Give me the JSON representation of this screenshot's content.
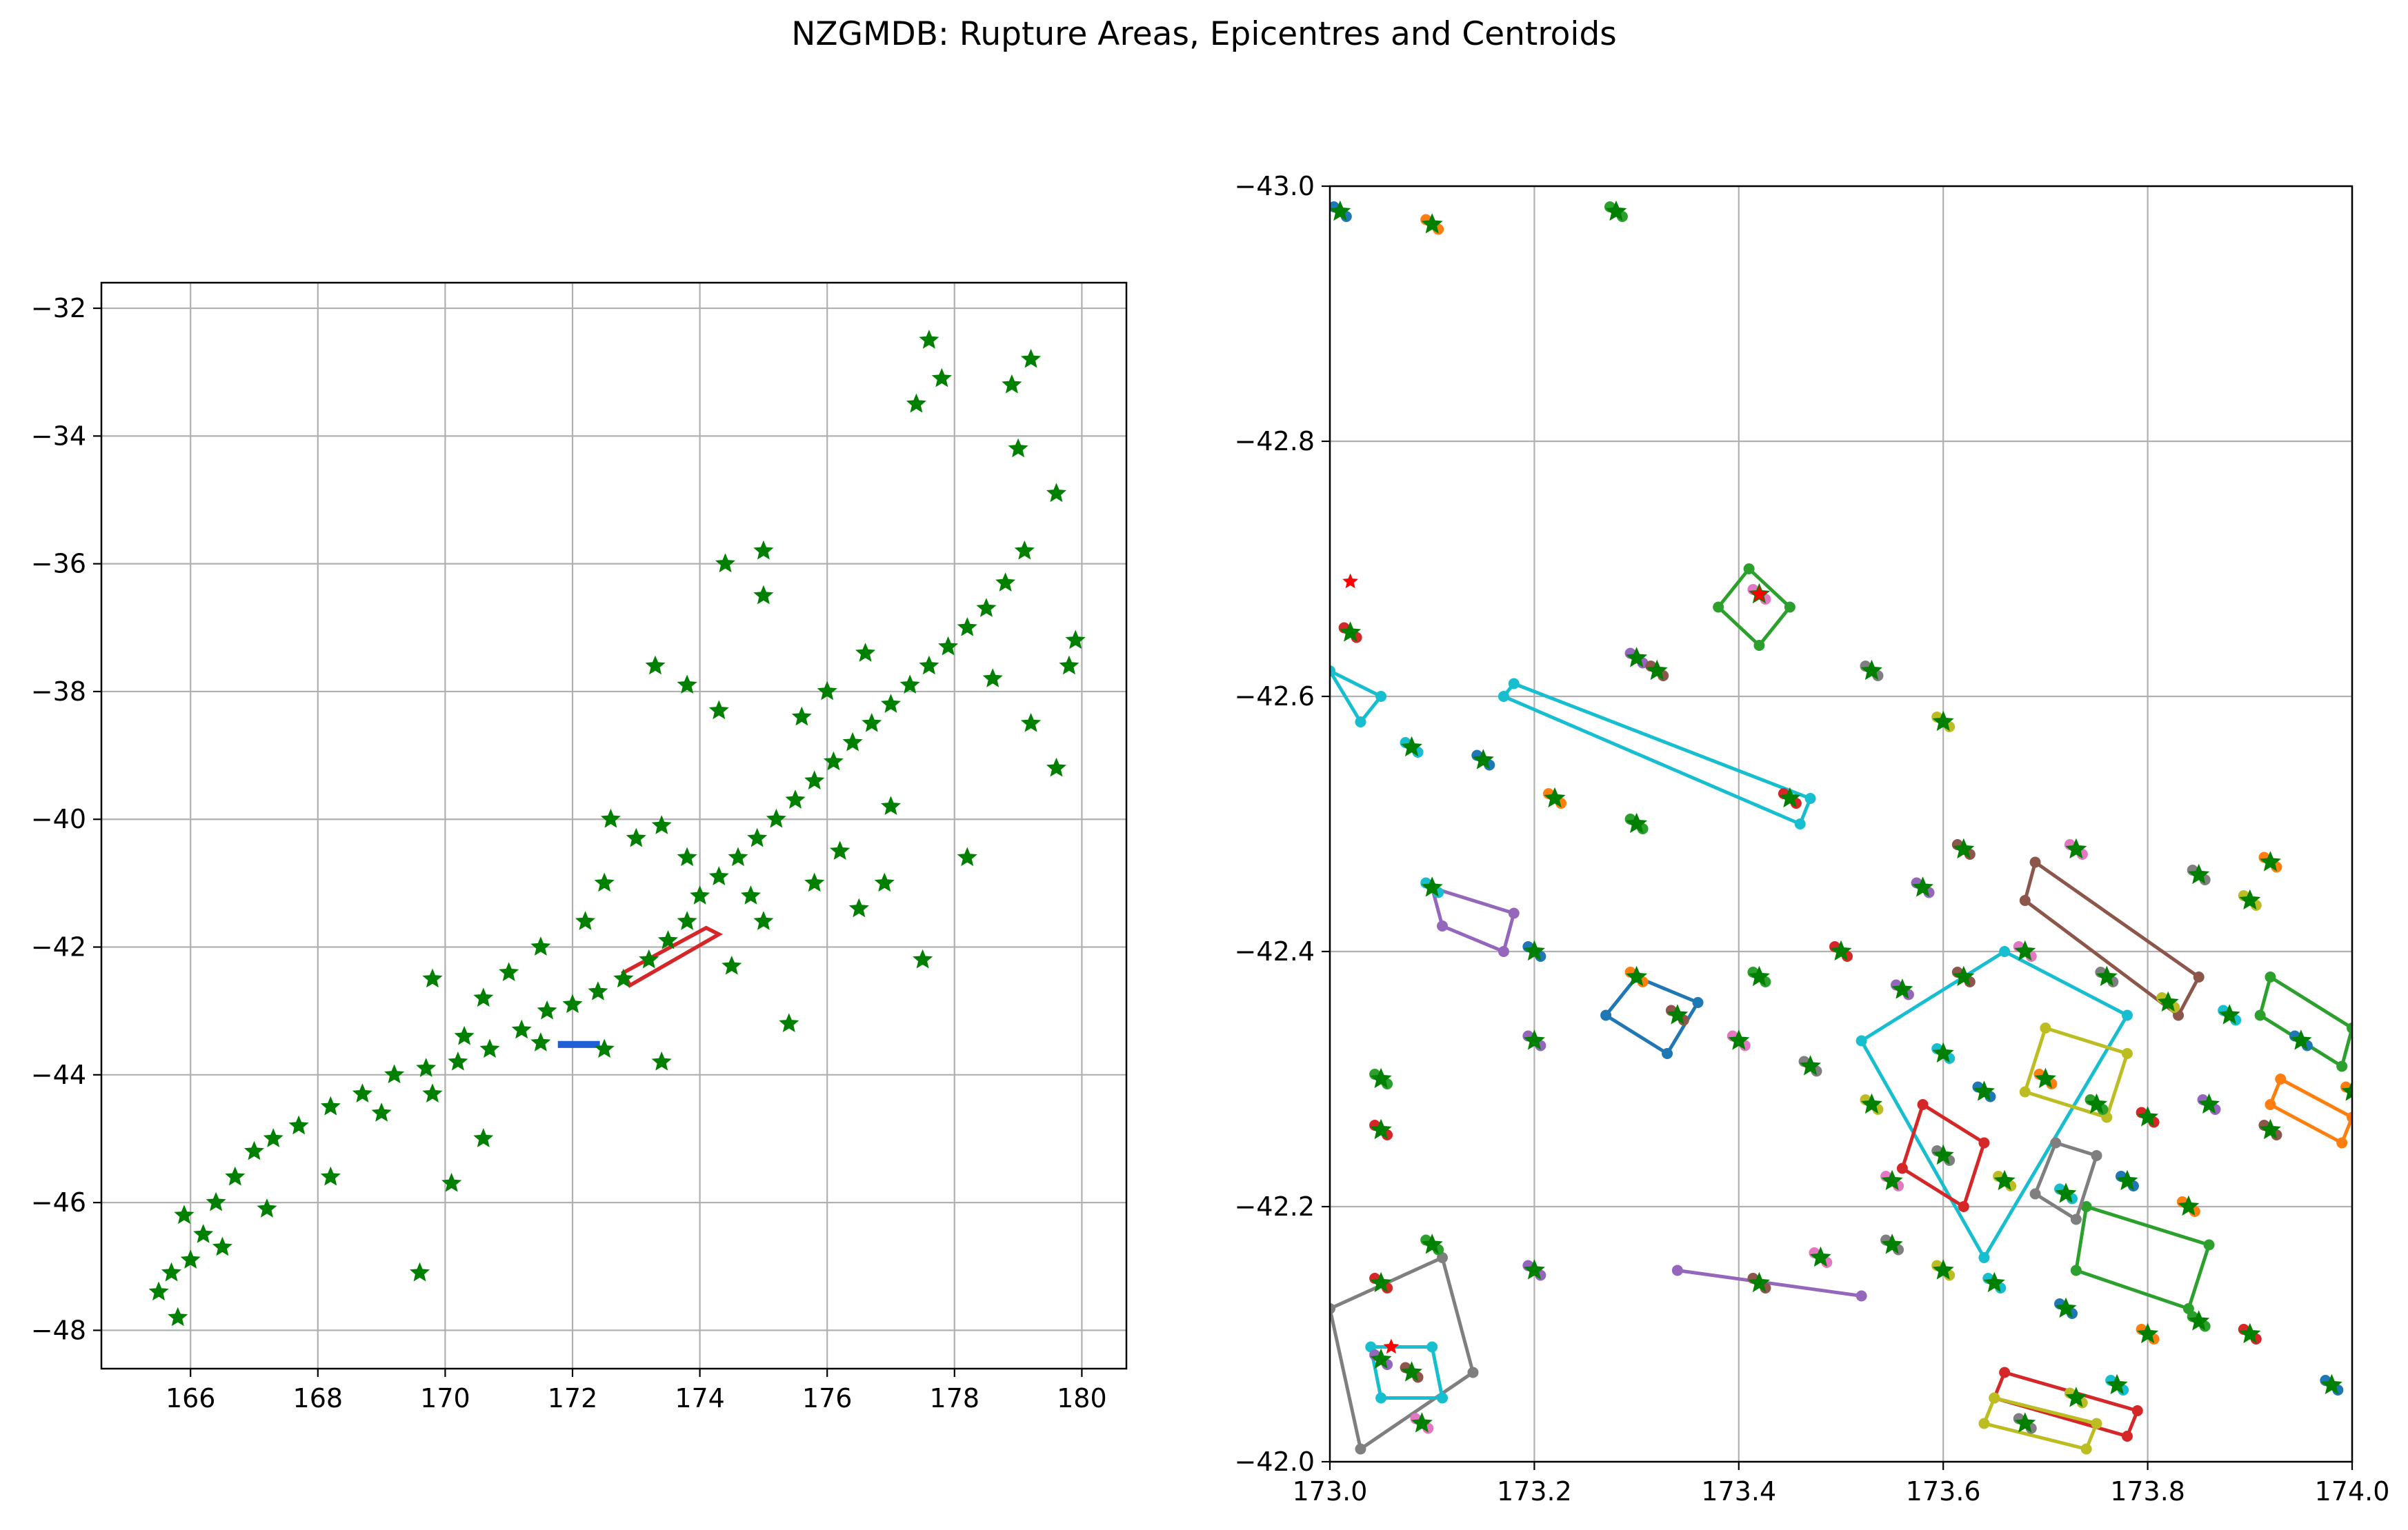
{
  "suptitle": "NZGMDB: Rupture Areas, Epicentres and Centroids",
  "colors": {
    "star": "#008000",
    "epicentre": "#ff0000",
    "grid": "#b0b0b0",
    "palette": [
      "#1f77b4",
      "#ff7f0e",
      "#2ca02c",
      "#d62728",
      "#9467bd",
      "#8c564b",
      "#e377c2",
      "#7f7f7f",
      "#bcbd22",
      "#17becf"
    ]
  },
  "chart_data": [
    {
      "type": "scatter",
      "title": "",
      "xlabel": "",
      "ylabel": "",
      "xlim": [
        164.6,
        180.7
      ],
      "ylim": [
        -48.6,
        -31.6
      ],
      "grid": true,
      "xticks": [
        166,
        168,
        170,
        172,
        174,
        176,
        178,
        180
      ],
      "yticks": [
        -48,
        -46,
        -44,
        -42,
        -40,
        -38,
        -36,
        -34,
        -32
      ],
      "xtick_labels": [
        "166",
        "168",
        "170",
        "172",
        "174",
        "176",
        "178",
        "180"
      ],
      "ytick_labels": [
        "−48",
        "−46",
        "−44",
        "−42",
        "−40",
        "−38",
        "−36",
        "−34",
        "−32"
      ],
      "centroid_stars": [
        [
          165.5,
          -47.4
        ],
        [
          165.7,
          -47.1
        ],
        [
          165.8,
          -47.8
        ],
        [
          166.0,
          -46.9
        ],
        [
          166.2,
          -46.5
        ],
        [
          165.9,
          -46.2
        ],
        [
          166.4,
          -46.0
        ],
        [
          166.7,
          -45.6
        ],
        [
          167.0,
          -45.2
        ],
        [
          167.3,
          -45.0
        ],
        [
          167.7,
          -44.8
        ],
        [
          168.2,
          -44.5
        ],
        [
          168.7,
          -44.3
        ],
        [
          169.2,
          -44.0
        ],
        [
          169.7,
          -43.9
        ],
        [
          170.2,
          -43.8
        ],
        [
          170.7,
          -43.6
        ],
        [
          171.2,
          -43.3
        ],
        [
          171.6,
          -43.0
        ],
        [
          172.0,
          -42.9
        ],
        [
          172.4,
          -42.7
        ],
        [
          172.8,
          -42.5
        ],
        [
          173.2,
          -42.2
        ],
        [
          173.5,
          -41.9
        ],
        [
          173.8,
          -41.6
        ],
        [
          174.0,
          -41.2
        ],
        [
          174.3,
          -40.9
        ],
        [
          174.6,
          -40.6
        ],
        [
          174.9,
          -40.3
        ],
        [
          175.2,
          -40.0
        ],
        [
          175.5,
          -39.7
        ],
        [
          175.8,
          -39.4
        ],
        [
          176.1,
          -39.1
        ],
        [
          176.4,
          -38.8
        ],
        [
          176.7,
          -38.5
        ],
        [
          177.0,
          -38.2
        ],
        [
          177.3,
          -37.9
        ],
        [
          177.6,
          -37.6
        ],
        [
          177.9,
          -37.3
        ],
        [
          178.2,
          -37.0
        ],
        [
          178.5,
          -36.7
        ],
        [
          178.8,
          -36.3
        ],
        [
          179.1,
          -35.8
        ],
        [
          179.6,
          -34.9
        ],
        [
          179.0,
          -34.2
        ],
        [
          178.9,
          -33.2
        ],
        [
          179.2,
          -32.8
        ],
        [
          177.6,
          -32.5
        ],
        [
          177.8,
          -33.1
        ],
        [
          177.4,
          -33.5
        ],
        [
          175.0,
          -35.8
        ],
        [
          174.4,
          -36.0
        ],
        [
          175.0,
          -36.5
        ],
        [
          173.3,
          -37.6
        ],
        [
          173.8,
          -37.9
        ],
        [
          174.3,
          -38.3
        ],
        [
          172.6,
          -40.0
        ],
        [
          173.0,
          -40.3
        ],
        [
          172.5,
          -41.0
        ],
        [
          172.2,
          -41.6
        ],
        [
          171.5,
          -42.0
        ],
        [
          171.0,
          -42.4
        ],
        [
          170.6,
          -42.8
        ],
        [
          169.8,
          -42.5
        ],
        [
          170.3,
          -43.4
        ],
        [
          171.5,
          -43.5
        ],
        [
          172.5,
          -43.6
        ],
        [
          173.4,
          -43.8
        ],
        [
          174.5,
          -42.3
        ],
        [
          175.4,
          -43.2
        ],
        [
          176.5,
          -41.4
        ],
        [
          176.9,
          -41.0
        ],
        [
          177.5,
          -42.2
        ],
        [
          178.2,
          -40.6
        ],
        [
          179.6,
          -39.2
        ],
        [
          179.2,
          -38.5
        ],
        [
          179.8,
          -37.6
        ],
        [
          179.9,
          -37.2
        ],
        [
          178.6,
          -37.8
        ],
        [
          177.0,
          -39.8
        ],
        [
          176.2,
          -40.5
        ],
        [
          175.8,
          -41.0
        ],
        [
          175.0,
          -41.6
        ],
        [
          174.8,
          -41.2
        ],
        [
          173.8,
          -40.6
        ],
        [
          173.4,
          -40.1
        ],
        [
          175.6,
          -38.4
        ],
        [
          176.0,
          -38.0
        ],
        [
          176.6,
          -37.4
        ],
        [
          169.6,
          -47.1
        ],
        [
          170.1,
          -45.7
        ],
        [
          170.6,
          -45.0
        ],
        [
          167.2,
          -46.1
        ],
        [
          166.5,
          -46.7
        ],
        [
          168.2,
          -45.6
        ],
        [
          169.0,
          -44.6
        ],
        [
          169.8,
          -44.3
        ]
      ],
      "ruptures": [
        {
          "color": "red",
          "polygon": [
            [
              172.9,
              -42.6
            ],
            [
              174.3,
              -41.8
            ],
            [
              174.1,
              -41.7
            ],
            [
              172.8,
              -42.4
            ]
          ]
        },
        {
          "color": "blue",
          "polygon": [
            [
              171.8,
              -43.55
            ],
            [
              172.4,
              -43.55
            ],
            [
              172.4,
              -43.5
            ],
            [
              171.8,
              -43.5
            ]
          ]
        }
      ]
    },
    {
      "type": "scatter",
      "title": "",
      "xlabel": "",
      "ylabel": "",
      "xlim": [
        173.0,
        174.0
      ],
      "ylim": [
        -42.0,
        -43.0
      ],
      "grid": true,
      "xticks": [
        173.0,
        173.2,
        173.4,
        173.6,
        173.8,
        174.0
      ],
      "yticks": [
        -43.0,
        -42.8,
        -42.6,
        -42.4,
        -42.2,
        -42.0
      ],
      "xtick_labels": [
        "173.0",
        "173.2",
        "173.4",
        "173.6",
        "173.8",
        "174.0"
      ],
      "ytick_labels": [
        "−43.0",
        "−42.8",
        "−42.6",
        "−42.4",
        "−42.2",
        "−42.0"
      ],
      "ruptures": [
        {
          "color": "#17becf",
          "polygon": [
            [
              173.0,
              -42.62
            ],
            [
              173.05,
              -42.6
            ],
            [
              173.03,
              -42.58
            ]
          ]
        },
        {
          "color": "#17becf",
          "polygon": [
            [
              173.18,
              -42.61
            ],
            [
              173.47,
              -42.52
            ],
            [
              173.46,
              -42.5
            ],
            [
              173.17,
              -42.6
            ]
          ]
        },
        {
          "color": "#2ca02c",
          "polygon": [
            [
              173.41,
              -42.7
            ],
            [
              173.45,
              -42.67
            ],
            [
              173.42,
              -42.64
            ],
            [
              173.38,
              -42.67
            ]
          ]
        },
        {
          "color": "#17becf",
          "polygon": [
            [
              173.52,
              -42.33
            ],
            [
              173.66,
              -42.4
            ],
            [
              173.78,
              -42.35
            ],
            [
              173.64,
              -42.16
            ]
          ]
        },
        {
          "color": "#8c564b",
          "polygon": [
            [
              173.69,
              -42.47
            ],
            [
              173.85,
              -42.38
            ],
            [
              173.83,
              -42.35
            ],
            [
              173.68,
              -42.44
            ]
          ]
        },
        {
          "color": "#9467bd",
          "polygon": [
            [
              173.34,
              -42.15
            ],
            [
              173.52,
              -42.13
            ]
          ]
        },
        {
          "color": "#7f7f7f",
          "polygon": [
            [
              173.0,
              -42.12
            ],
            [
              173.11,
              -42.16
            ],
            [
              173.14,
              -42.07
            ],
            [
              173.03,
              -42.01
            ]
          ]
        },
        {
          "color": "#17becf",
          "polygon": [
            [
              173.04,
              -42.09
            ],
            [
              173.1,
              -42.09
            ],
            [
              173.11,
              -42.05
            ],
            [
              173.05,
              -42.05
            ]
          ]
        },
        {
          "color": "#2ca02c",
          "polygon": [
            [
              173.74,
              -42.2
            ],
            [
              173.86,
              -42.17
            ],
            [
              173.84,
              -42.12
            ],
            [
              173.73,
              -42.15
            ]
          ]
        },
        {
          "color": "#1f77b4",
          "polygon": [
            [
              173.27,
              -42.35
            ],
            [
              173.33,
              -42.32
            ],
            [
              173.36,
              -42.36
            ],
            [
              173.3,
              -42.38
            ]
          ]
        },
        {
          "color": "#d62728",
          "polygon": [
            [
              173.58,
              -42.28
            ],
            [
              173.64,
              -42.25
            ],
            [
              173.62,
              -42.2
            ],
            [
              173.56,
              -42.23
            ]
          ]
        },
        {
          "color": "#bcbd22",
          "polygon": [
            [
              173.7,
              -42.34
            ],
            [
              173.78,
              -42.32
            ],
            [
              173.76,
              -42.27
            ],
            [
              173.68,
              -42.29
            ]
          ]
        },
        {
          "color": "#2ca02c",
          "polygon": [
            [
              173.92,
              -42.38
            ],
            [
              174.0,
              -42.34
            ],
            [
              173.99,
              -42.31
            ],
            [
              173.91,
              -42.35
            ]
          ]
        },
        {
          "color": "#ff7f0e",
          "polygon": [
            [
              173.93,
              -42.3
            ],
            [
              174.0,
              -42.27
            ],
            [
              173.99,
              -42.25
            ],
            [
              173.92,
              -42.28
            ]
          ]
        },
        {
          "color": "#d62728",
          "polygon": [
            [
              173.66,
              -42.07
            ],
            [
              173.79,
              -42.04
            ],
            [
              173.78,
              -42.02
            ],
            [
              173.65,
              -42.05
            ]
          ]
        },
        {
          "color": "#bcbd22",
          "polygon": [
            [
              173.65,
              -42.05
            ],
            [
              173.75,
              -42.03
            ],
            [
              173.74,
              -42.01
            ],
            [
              173.64,
              -42.03
            ]
          ]
        },
        {
          "color": "#7f7f7f",
          "polygon": [
            [
              173.71,
              -42.25
            ],
            [
              173.75,
              -42.24
            ],
            [
              173.73,
              -42.19
            ],
            [
              173.69,
              -42.21
            ]
          ]
        },
        {
          "color": "#9467bd",
          "polygon": [
            [
              173.1,
              -42.45
            ],
            [
              173.18,
              -42.43
            ],
            [
              173.17,
              -42.4
            ],
            [
              173.11,
              -42.42
            ]
          ]
        }
      ],
      "centroid_stars": [
        [
          173.01,
          -42.98
        ],
        [
          173.1,
          -42.97
        ],
        [
          173.28,
          -42.98
        ],
        [
          173.02,
          -42.65
        ],
        [
          173.3,
          -42.63
        ],
        [
          173.32,
          -42.62
        ],
        [
          173.42,
          -42.68
        ],
        [
          173.53,
          -42.62
        ],
        [
          173.6,
          -42.58
        ],
        [
          173.08,
          -42.56
        ],
        [
          173.15,
          -42.55
        ],
        [
          173.22,
          -42.52
        ],
        [
          173.3,
          -42.5
        ],
        [
          173.45,
          -42.52
        ],
        [
          173.58,
          -42.45
        ],
        [
          173.62,
          -42.48
        ],
        [
          173.73,
          -42.48
        ],
        [
          173.85,
          -42.46
        ],
        [
          173.9,
          -42.44
        ],
        [
          173.1,
          -42.45
        ],
        [
          173.2,
          -42.4
        ],
        [
          173.3,
          -42.38
        ],
        [
          173.42,
          -42.38
        ],
        [
          173.5,
          -42.4
        ],
        [
          173.56,
          -42.37
        ],
        [
          173.62,
          -42.38
        ],
        [
          173.68,
          -42.4
        ],
        [
          173.76,
          -42.38
        ],
        [
          173.82,
          -42.36
        ],
        [
          173.88,
          -42.35
        ],
        [
          173.95,
          -42.33
        ],
        [
          174.0,
          -42.29
        ],
        [
          173.05,
          -42.3
        ],
        [
          173.05,
          -42.26
        ],
        [
          173.2,
          -42.33
        ],
        [
          173.34,
          -42.35
        ],
        [
          173.4,
          -42.33
        ],
        [
          173.47,
          -42.31
        ],
        [
          173.53,
          -42.28
        ],
        [
          173.6,
          -42.32
        ],
        [
          173.64,
          -42.29
        ],
        [
          173.7,
          -42.3
        ],
        [
          173.75,
          -42.28
        ],
        [
          173.8,
          -42.27
        ],
        [
          173.86,
          -42.28
        ],
        [
          173.92,
          -42.26
        ],
        [
          173.55,
          -42.22
        ],
        [
          173.6,
          -42.24
        ],
        [
          173.66,
          -42.22
        ],
        [
          173.72,
          -42.21
        ],
        [
          173.78,
          -42.22
        ],
        [
          173.84,
          -42.2
        ],
        [
          173.1,
          -42.17
        ],
        [
          173.05,
          -42.14
        ],
        [
          173.2,
          -42.15
        ],
        [
          173.42,
          -42.14
        ],
        [
          173.48,
          -42.16
        ],
        [
          173.55,
          -42.17
        ],
        [
          173.6,
          -42.15
        ],
        [
          173.65,
          -42.14
        ],
        [
          173.72,
          -42.12
        ],
        [
          173.8,
          -42.1
        ],
        [
          173.85,
          -42.11
        ],
        [
          173.9,
          -42.1
        ],
        [
          173.05,
          -42.08
        ],
        [
          173.08,
          -42.07
        ],
        [
          173.09,
          -42.03
        ],
        [
          173.68,
          -42.03
        ],
        [
          173.73,
          -42.05
        ],
        [
          173.77,
          -42.06
        ],
        [
          173.98,
          -42.06
        ],
        [
          173.92,
          -42.47
        ]
      ],
      "epicentres": [
        [
          173.02,
          -42.69
        ],
        [
          173.42,
          -42.68
        ],
        [
          173.06,
          -42.09
        ]
      ]
    }
  ]
}
